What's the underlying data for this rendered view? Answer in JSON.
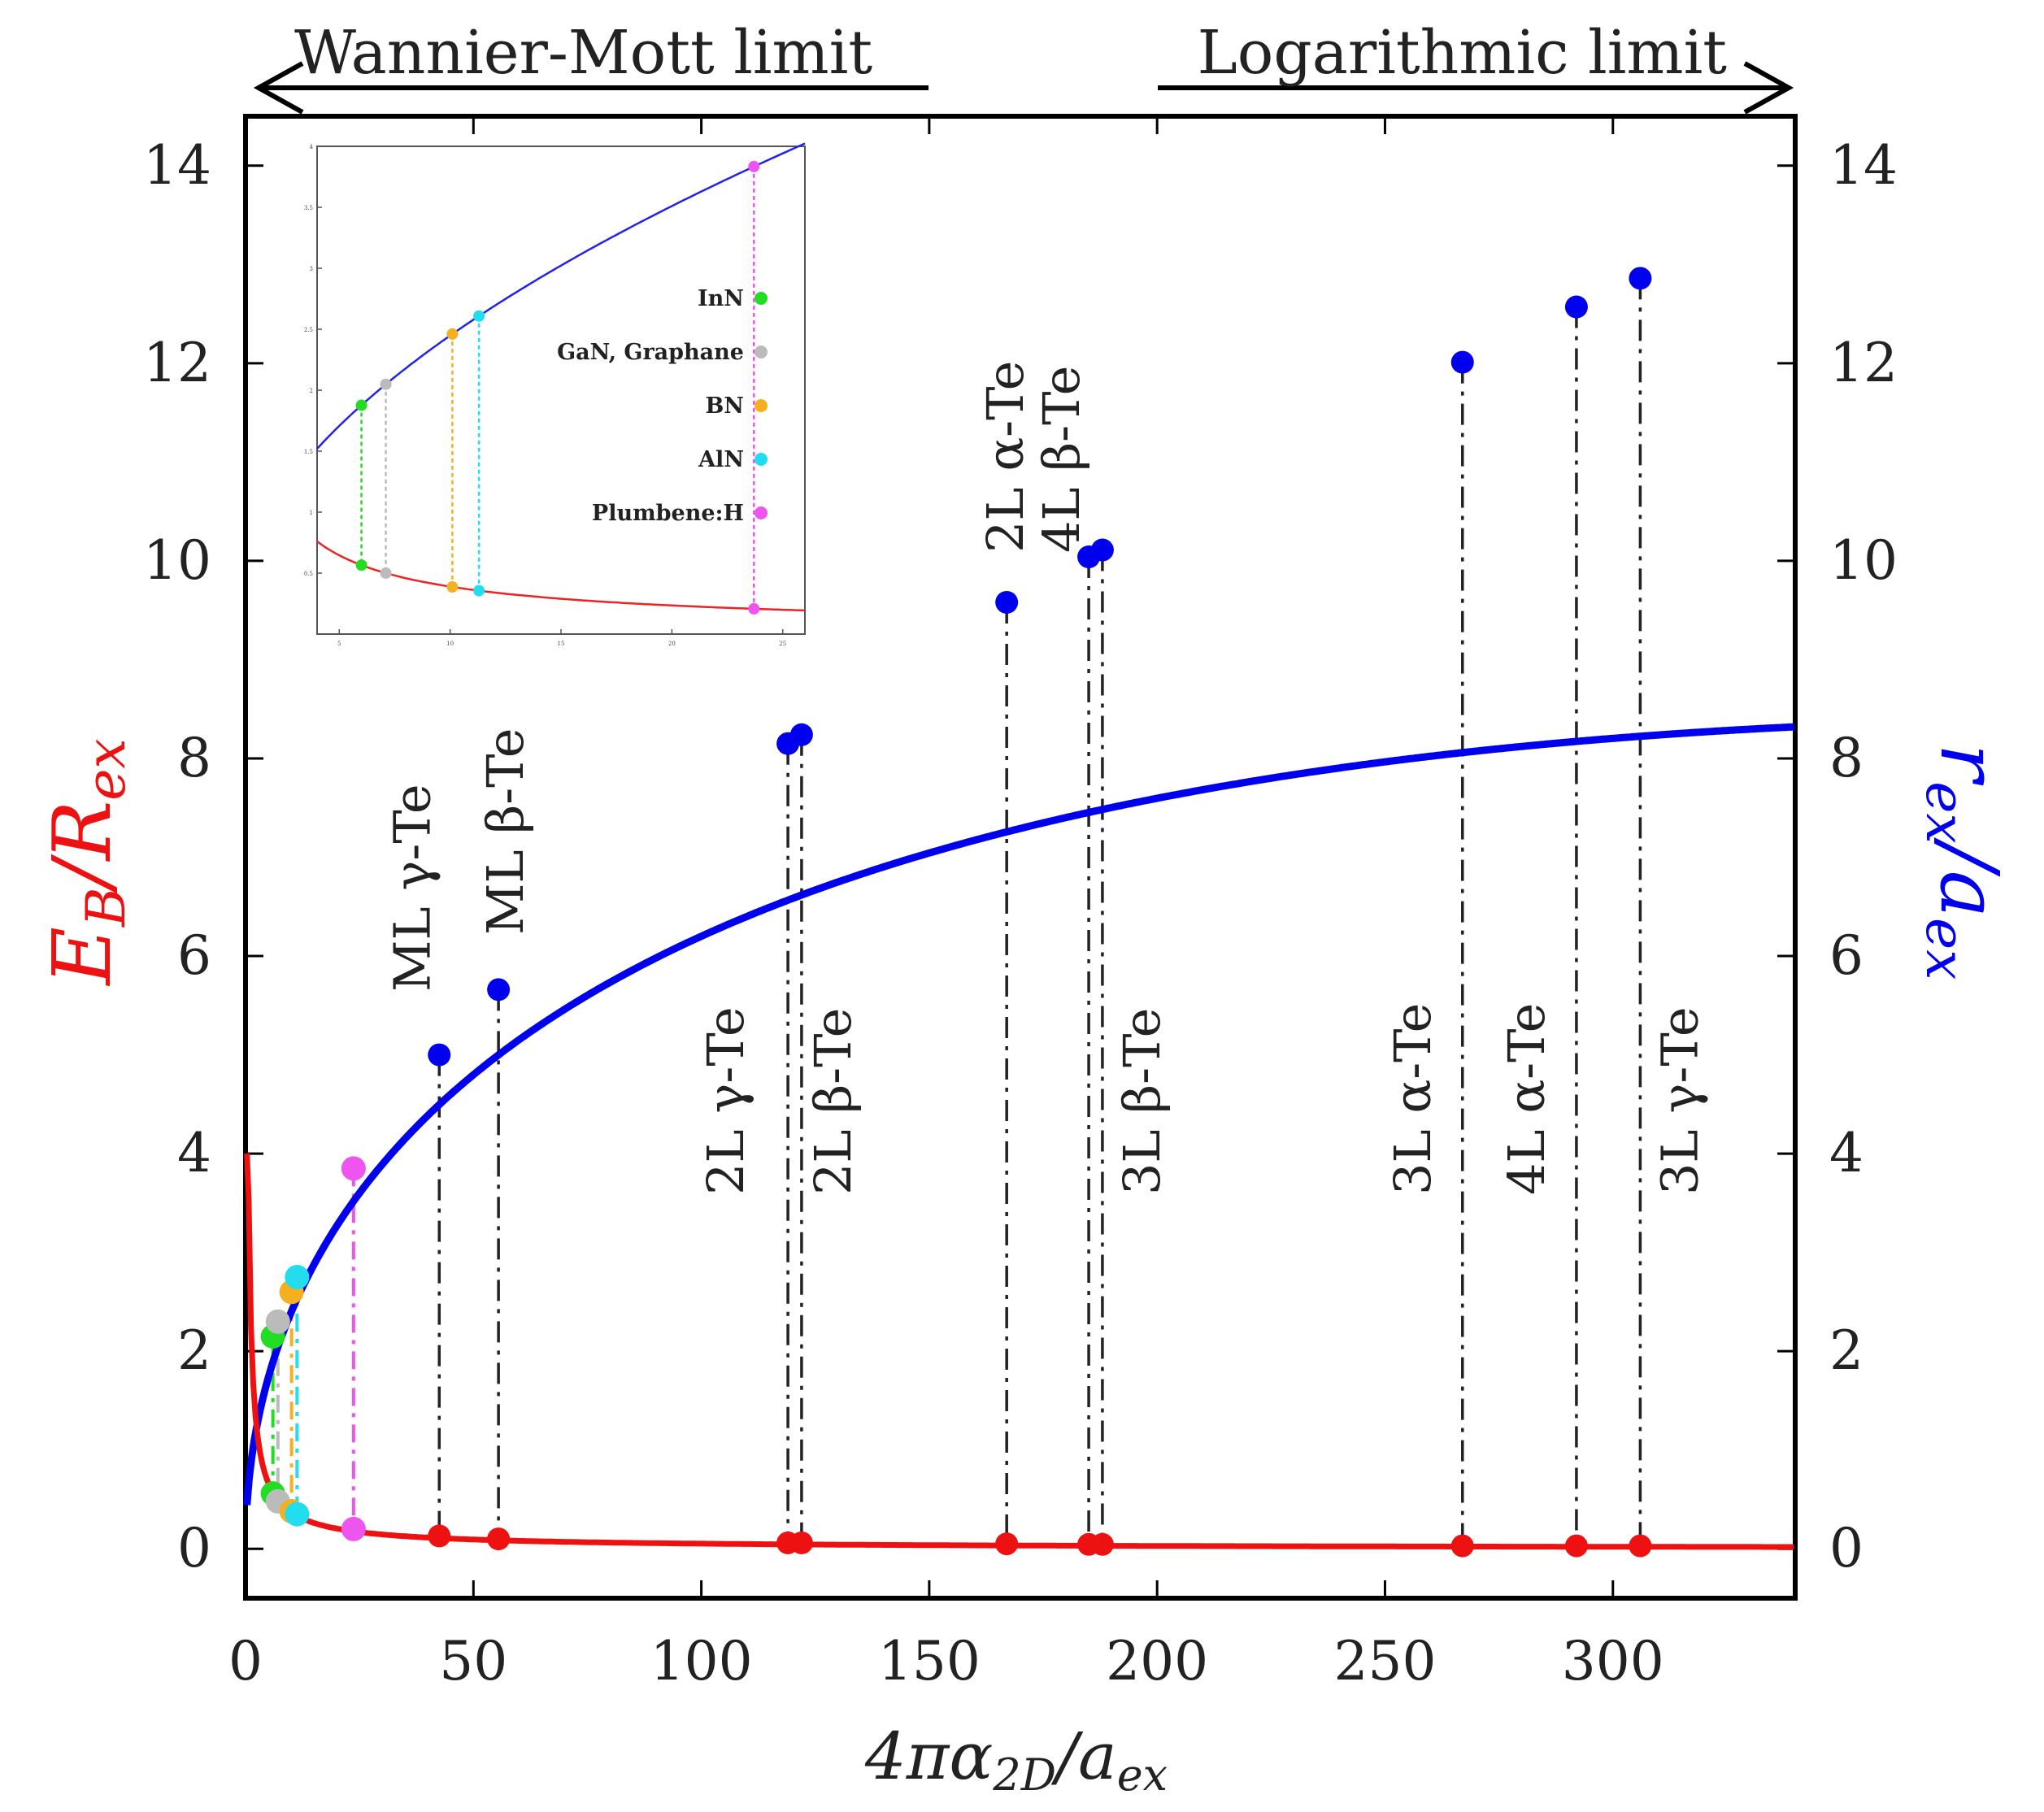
{
  "chart_data": {
    "type": "line",
    "xlabel": "4πα2D/aex",
    "ylabel_left": "EB/Rex",
    "ylabel_right": "rex/aex",
    "xlim": [
      0,
      340
    ],
    "ylim": [
      -0.5,
      14.5
    ],
    "x_ticks": [
      0,
      50,
      100,
      150,
      200,
      250,
      300
    ],
    "y_ticks": [
      0,
      2,
      4,
      6,
      8,
      10,
      12,
      14
    ],
    "limits": {
      "left": "Wannier-Mott limit",
      "right": "Logarithmic limit"
    },
    "series": [
      {
        "name": "rex/aex",
        "color": "#0000ee"
      },
      {
        "name": "EB/Rex",
        "color": "#ee1111"
      }
    ],
    "materials_main": [
      {
        "label": "ML γ-Te",
        "x": 42.5,
        "r": 5.0,
        "e": 0.13
      },
      {
        "label": "ML β-Te",
        "x": 55.5,
        "r": 5.66,
        "e": 0.1
      },
      {
        "label": "2L γ-Te",
        "x": 119,
        "r": 8.15,
        "e": 0.06
      },
      {
        "label": "2L β-Te",
        "x": 122,
        "r": 8.24,
        "e": 0.06
      },
      {
        "label": "2L α-Te",
        "x": 167,
        "r": 9.58,
        "e": 0.05
      },
      {
        "label": "4L β-Te",
        "x": 185,
        "r": 10.04,
        "e": 0.045
      },
      {
        "label": "3L β-Te",
        "x": 188,
        "r": 10.11,
        "e": 0.045
      },
      {
        "label": "3L α-Te",
        "x": 267,
        "r": 12.01,
        "e": 0.03
      },
      {
        "label": "4L α-Te",
        "x": 292,
        "r": 12.57,
        "e": 0.03
      },
      {
        "label": "3L γ-Te",
        "x": 306,
        "r": 12.86,
        "e": 0.03
      }
    ],
    "inset": {
      "xlim": [
        4,
        26
      ],
      "ylim": [
        0,
        4
      ],
      "x_ticks": [
        5,
        10,
        15,
        20,
        25
      ],
      "y_ticks": [
        0.5,
        1,
        1.5,
        2,
        2.5,
        3,
        3.5,
        4
      ],
      "materials": [
        {
          "label": "InN",
          "x": 6.0,
          "r": 2.15,
          "e": 0.56,
          "color": "#22dd22"
        },
        {
          "label": "GaN, Graphane",
          "x": 7.1,
          "r": 2.3,
          "e": 0.48,
          "color": "#bbbbbb"
        },
        {
          "label": "BN",
          "x": 10.1,
          "r": 2.6,
          "e": 0.38,
          "color": "#f4b020"
        },
        {
          "label": "AlN",
          "x": 11.3,
          "r": 2.75,
          "e": 0.35,
          "color": "#22ddee"
        },
        {
          "label": "Plumbene:H",
          "x": 23.7,
          "r": 3.85,
          "e": 0.2,
          "color": "#ee55ee"
        }
      ]
    }
  }
}
